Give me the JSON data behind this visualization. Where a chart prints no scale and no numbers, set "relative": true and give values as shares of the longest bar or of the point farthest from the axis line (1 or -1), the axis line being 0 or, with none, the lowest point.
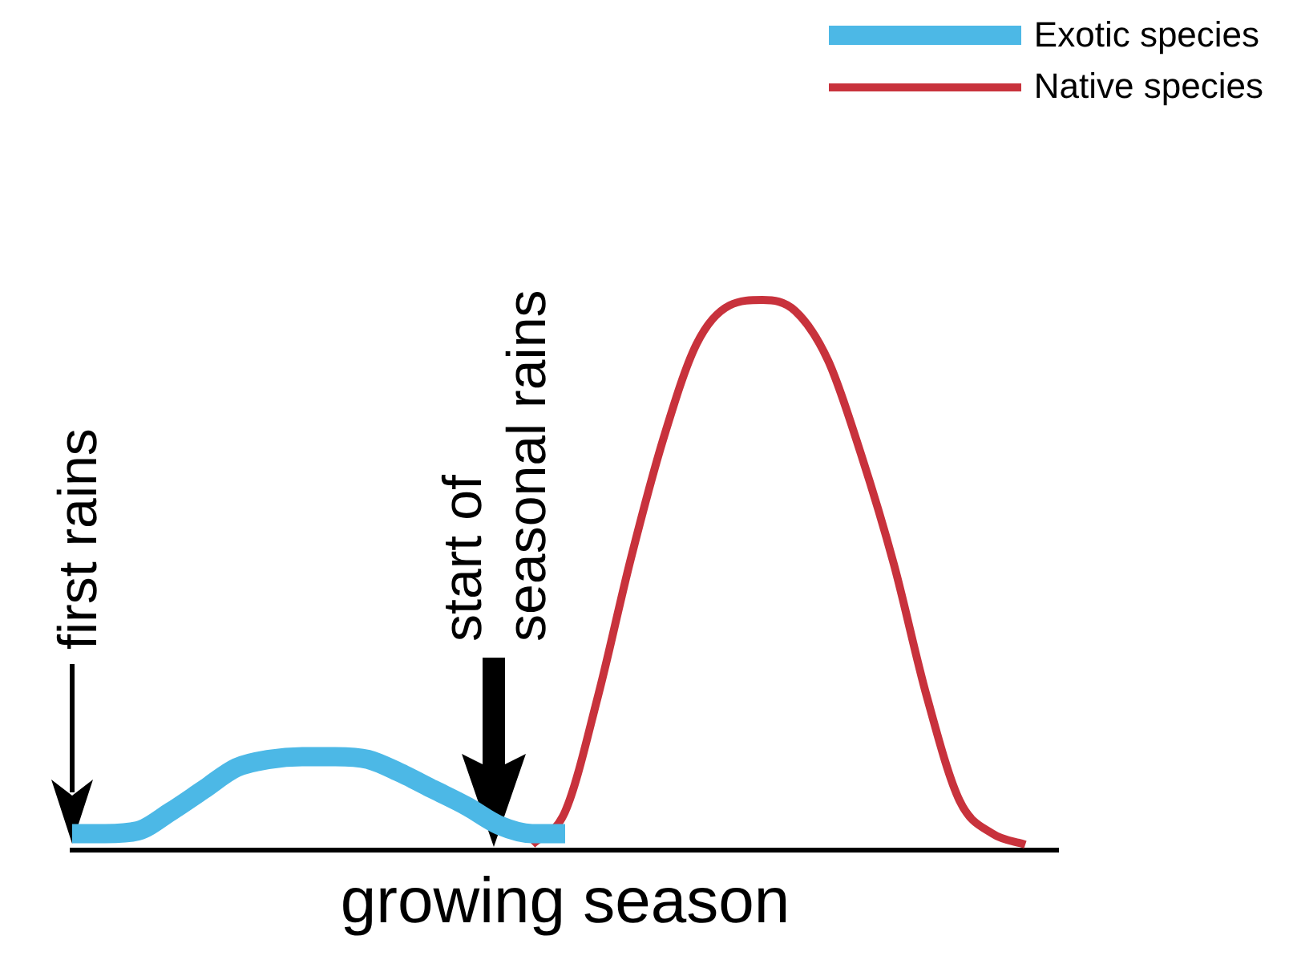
{
  "chart_data": {
    "type": "line",
    "relative": true,
    "xlabel": "growing season",
    "legend": "top right",
    "grid": false,
    "marker": "none",
    "categories": [
      null,
      null,
      null,
      null,
      null,
      null,
      null,
      null,
      null,
      null,
      null,
      null,
      null,
      null,
      null,
      null,
      null,
      null,
      null,
      null,
      null,
      null,
      null,
      null,
      null,
      null,
      null,
      null,
      null,
      null,
      null
    ],
    "series": [
      {
        "name": "Exotic species",
        "color": "#4cb8e6",
        "values": [
          0.03,
          0.03,
          0.035,
          0.07,
          0.11,
          0.15,
          0.165,
          0.17,
          0.17,
          0.165,
          0.14,
          0.11,
          0.08,
          0.045,
          0.03,
          0.03,
          null,
          null,
          null,
          null,
          null,
          null,
          null,
          null,
          null,
          null,
          null,
          null,
          null,
          null,
          null
        ]
      },
      {
        "name": "Native species",
        "color": "#c8323c",
        "values": [
          null,
          null,
          null,
          null,
          null,
          null,
          null,
          null,
          null,
          null,
          null,
          null,
          null,
          null,
          0.01,
          0.07,
          0.28,
          0.53,
          0.75,
          0.92,
          0.99,
          1,
          0.98,
          0.89,
          0.72,
          0.52,
          0.28,
          0.09,
          0.03,
          0.01,
          null
        ]
      }
    ],
    "annotations": [
      "first rains",
      "start of\nseasonal rains"
    ]
  }
}
